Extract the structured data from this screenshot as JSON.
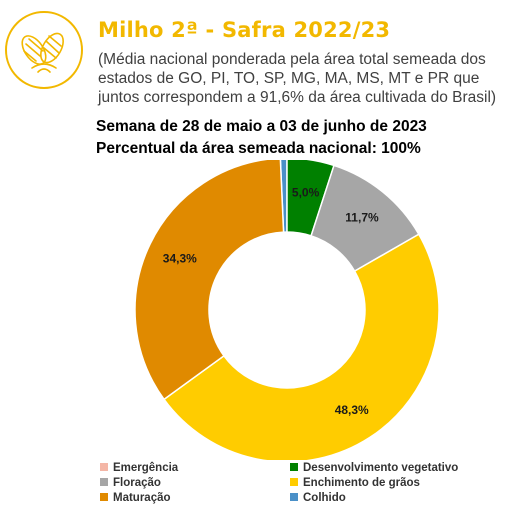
{
  "header": {
    "title": "Milho 2ª - Safra 2022/23",
    "subtitle": "(Média nacional ponderada pela área total semeada dos estados de GO, PI, TO, SP, MG, MA, MS, MT e PR que juntos correspondem a 91,6% da área cultivada do Brasil)",
    "week": "Semana de 28 de maio a 03 de junho de 2023",
    "percent_sown": "Percentual da área semeada nacional: 100%"
  },
  "chart_data": {
    "type": "pie",
    "donut": true,
    "categories": [
      "Emergência",
      "Desenvolvimento vegetativo",
      "Floração",
      "Enchimento de grãos",
      "Maturação",
      "Colhido"
    ],
    "values": [
      0.0,
      5.0,
      11.7,
      48.3,
      34.3,
      0.7
    ],
    "labels": [
      "",
      "5,0%",
      "11,7%",
      "48,3%",
      "34,3%",
      ""
    ],
    "colors": [
      "#F4B6A6",
      "#008000",
      "#A6A6A6",
      "#FFCC00",
      "#E08A00",
      "#4A90C8"
    ],
    "legend_position": "bottom"
  }
}
